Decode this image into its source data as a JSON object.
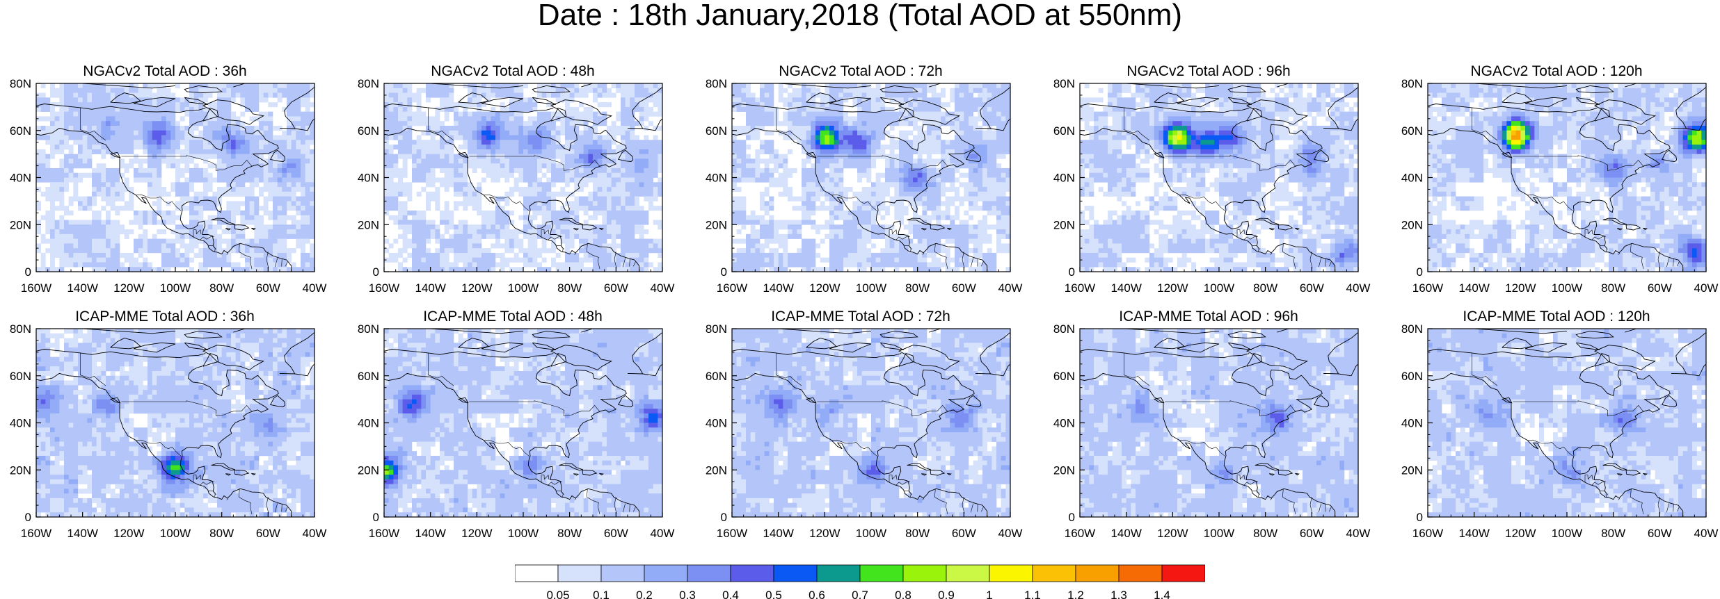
{
  "figure": {
    "title": "Date : 18th January,2018 (Total AOD at 550nm)"
  },
  "chart_data": {
    "type": "heatmap",
    "title": "Date : 18th January,2018 (Total AOD at 550nm)",
    "map_extent": {
      "lon": [
        -160,
        -40
      ],
      "lat": [
        0,
        80
      ]
    },
    "x_tick_labels": [
      "160W",
      "140W",
      "120W",
      "100W",
      "80W",
      "60W",
      "40W"
    ],
    "y_tick_labels": [
      "0",
      "20N",
      "40N",
      "60N",
      "80N"
    ],
    "colorbar": {
      "levels": [
        "0.05",
        "0.1",
        "0.2",
        "0.3",
        "0.4",
        "0.5",
        "0.6",
        "0.7",
        "0.8",
        "0.9",
        "1",
        "1.1",
        "1.2",
        "1.3",
        "1.4"
      ],
      "colors": [
        "#ffffff",
        "#d6e1fc",
        "#b3c5f9",
        "#93acf7",
        "#7c8ff2",
        "#5c5cea",
        "#0b59f5",
        "#0d9a8e",
        "#42e51d",
        "#9af30b",
        "#cbf745",
        "#fbf500",
        "#fbc205",
        "#f8a000",
        "#f76b04",
        "#f51812"
      ]
    },
    "panels": [
      {
        "title": "NGACv2 Total AOD : 36h",
        "blobs": [
          {
            "lon": -108,
            "lat": 58,
            "aod": 0.5
          },
          {
            "lon": -75,
            "lat": 55,
            "aod": 0.4
          },
          {
            "lon": -130,
            "lat": 60,
            "aod": 0.3
          },
          {
            "lon": -50,
            "lat": 45,
            "aod": 0.3
          }
        ]
      },
      {
        "title": "NGACv2 Total AOD : 48h",
        "blobs": [
          {
            "lon": -115,
            "lat": 58,
            "aod": 0.5
          },
          {
            "lon": -95,
            "lat": 55,
            "aod": 0.4
          },
          {
            "lon": -70,
            "lat": 50,
            "aod": 0.4
          },
          {
            "lon": -50,
            "lat": 45,
            "aod": 0.3
          }
        ]
      },
      {
        "title": "NGACv2 Total AOD : 72h",
        "blobs": [
          {
            "lon": -119,
            "lat": 57,
            "aod": 0.9
          },
          {
            "lon": -105,
            "lat": 55,
            "aod": 0.5
          },
          {
            "lon": -80,
            "lat": 40,
            "aod": 0.4
          },
          {
            "lon": -55,
            "lat": 50,
            "aod": 0.3
          }
        ]
      },
      {
        "title": "NGACv2 Total AOD : 96h",
        "blobs": [
          {
            "lon": -118,
            "lat": 57,
            "aod": 1.0
          },
          {
            "lon": -105,
            "lat": 55,
            "aod": 0.6
          },
          {
            "lon": -95,
            "lat": 57,
            "aod": 0.5
          },
          {
            "lon": -45,
            "lat": 8,
            "aod": 0.4
          },
          {
            "lon": -60,
            "lat": 48,
            "aod": 0.4
          }
        ]
      },
      {
        "title": "NGACv2 Total AOD : 120h",
        "blobs": [
          {
            "lon": -122,
            "lat": 58,
            "aod": 1.3
          },
          {
            "lon": -44,
            "lat": 57,
            "aod": 0.9
          },
          {
            "lon": -45,
            "lat": 8,
            "aod": 0.5
          },
          {
            "lon": -80,
            "lat": 43,
            "aod": 0.4
          },
          {
            "lon": -60,
            "lat": 45,
            "aod": 0.3
          }
        ]
      },
      {
        "title": "ICAP-MME Total AOD : 36h",
        "blobs": [
          {
            "lon": -100,
            "lat": 21,
            "aod": 0.7
          },
          {
            "lon": -157,
            "lat": 49,
            "aod": 0.4
          },
          {
            "lon": -130,
            "lat": 48,
            "aod": 0.3
          },
          {
            "lon": -60,
            "lat": 38,
            "aod": 0.3
          }
        ]
      },
      {
        "title": "ICAP-MME Total AOD : 48h",
        "blobs": [
          {
            "lon": -159,
            "lat": 20,
            "aod": 0.8
          },
          {
            "lon": -148,
            "lat": 48,
            "aod": 0.5
          },
          {
            "lon": -45,
            "lat": 42,
            "aod": 0.5
          },
          {
            "lon": -97,
            "lat": 21,
            "aod": 0.3
          }
        ]
      },
      {
        "title": "ICAP-MME Total AOD : 72h",
        "blobs": [
          {
            "lon": -140,
            "lat": 48,
            "aod": 0.4
          },
          {
            "lon": -62,
            "lat": 42,
            "aod": 0.4
          },
          {
            "lon": -98,
            "lat": 20,
            "aod": 0.4
          },
          {
            "lon": -120,
            "lat": 42,
            "aod": 0.3
          }
        ]
      },
      {
        "title": "ICAP-MME Total AOD : 96h",
        "blobs": [
          {
            "lon": -75,
            "lat": 42,
            "aod": 0.4
          },
          {
            "lon": -98,
            "lat": 20,
            "aod": 0.3
          },
          {
            "lon": -135,
            "lat": 45,
            "aod": 0.3
          }
        ]
      },
      {
        "title": "ICAP-MME Total AOD : 120h",
        "blobs": [
          {
            "lon": -75,
            "lat": 42,
            "aod": 0.4
          },
          {
            "lon": -98,
            "lat": 20,
            "aod": 0.3
          },
          {
            "lon": -135,
            "lat": 45,
            "aod": 0.3
          }
        ]
      }
    ]
  }
}
